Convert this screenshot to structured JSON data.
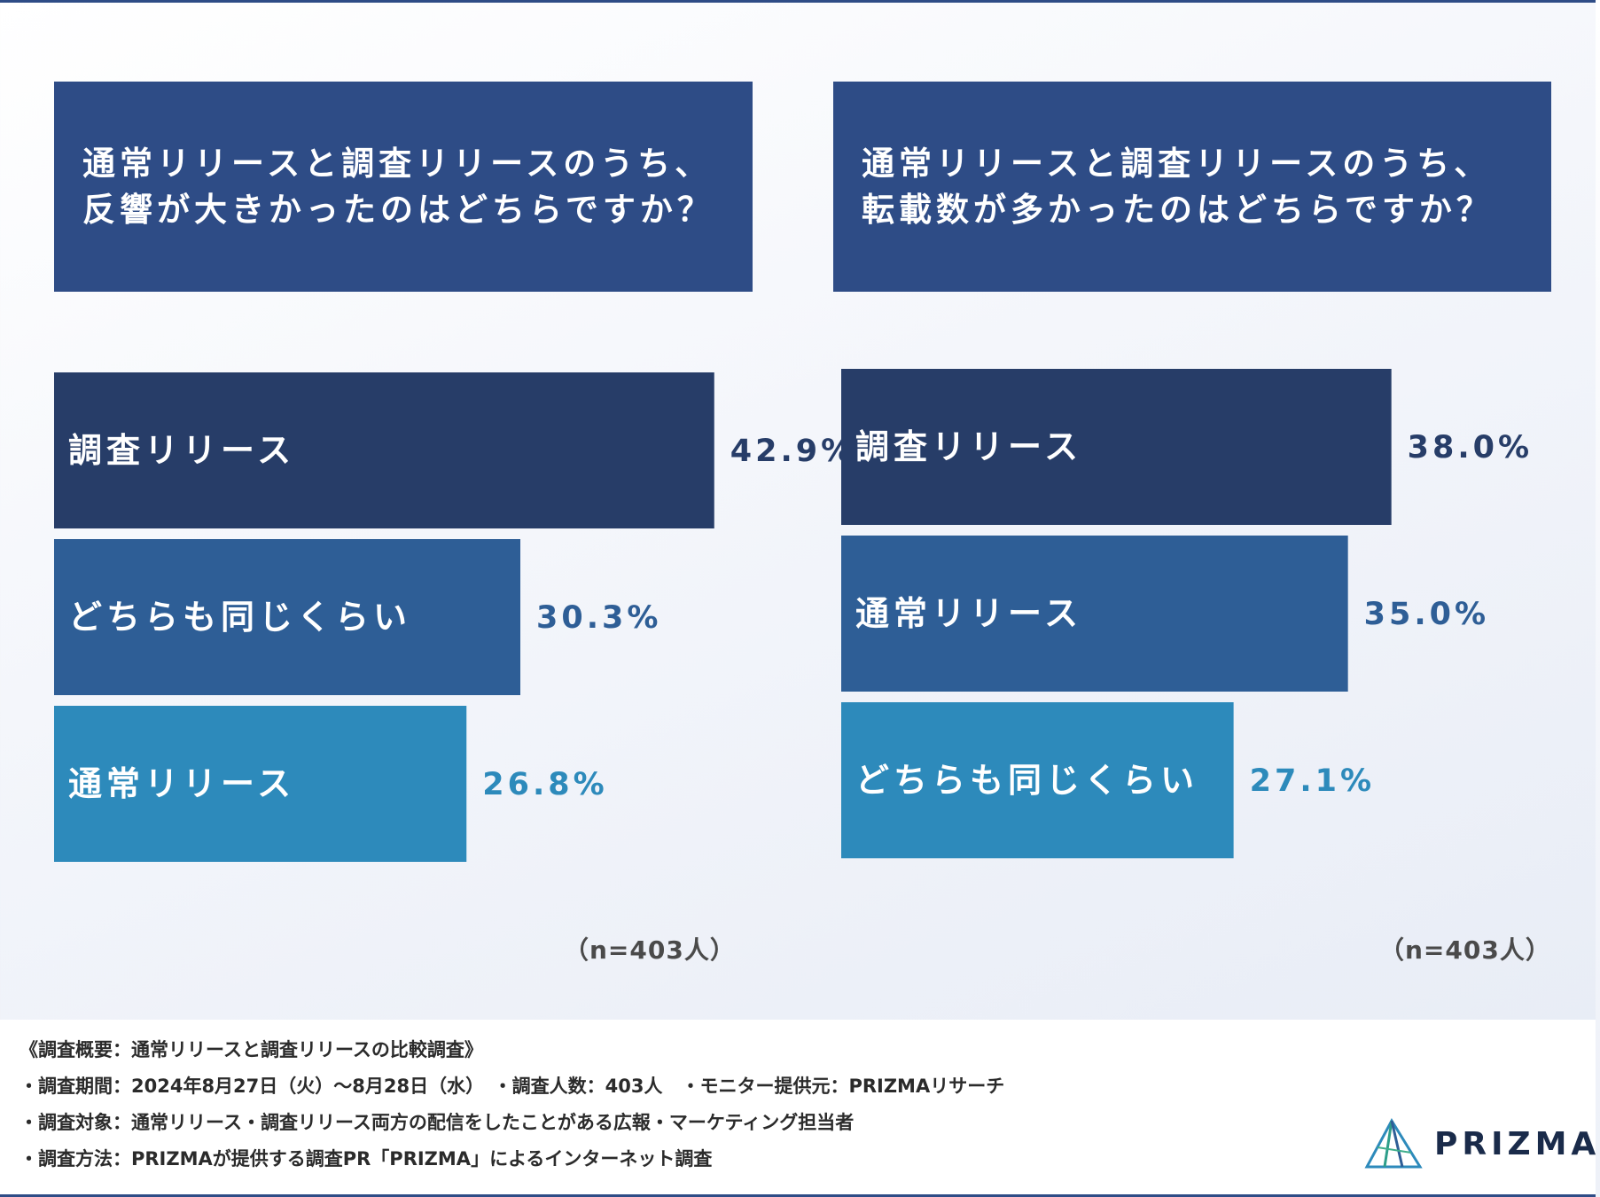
{
  "colors": {
    "title_bg": "#2e4c86",
    "rank1": "#273d68",
    "rank2": "#2e5e96",
    "rank3": "#2d8abb",
    "footer_text": "#2b2b2b"
  },
  "chart_data": [
    {
      "type": "bar",
      "title": "通常リリースと調査リリースのうち、\n反響が大きかったのはどちらですか？",
      "categories": [
        "調査リリース",
        "どちらも同じくらい",
        "通常リリース"
      ],
      "values": [
        42.9,
        30.3,
        26.8
      ],
      "value_labels": [
        "42.9%",
        "30.3%",
        "26.8%"
      ],
      "xlim": [
        0,
        50
      ],
      "n_label": "（n=403人）"
    },
    {
      "type": "bar",
      "title": "通常リリースと調査リリースのうち、\n転載数が多かったのはどちらですか？",
      "categories": [
        "調査リリース",
        "通常リリース",
        "どちらも同じくらい"
      ],
      "values": [
        38.0,
        35.0,
        27.1
      ],
      "value_labels": [
        "38.0%",
        "35.0%",
        "27.1%"
      ],
      "xlim": [
        0,
        45
      ],
      "n_label": "（n=403人）"
    }
  ],
  "footer": {
    "line1": "《調査概要：通常リリースと調査リリースの比較調査》",
    "line2": "・調査期間：2024年8月27日（火）〜8月28日（水）　・調査人数：403人　・モニター提供元：PRIZMAリサーチ",
    "line3": "・調査対象：通常リリース・調査リリース両方の配信をしたことがある広報・マーケティング担当者",
    "line4": "・調査方法：PRIZMAが提供する調査PR「PRIZMA」によるインターネット調査"
  },
  "logo": {
    "text": "PRIZMA"
  }
}
